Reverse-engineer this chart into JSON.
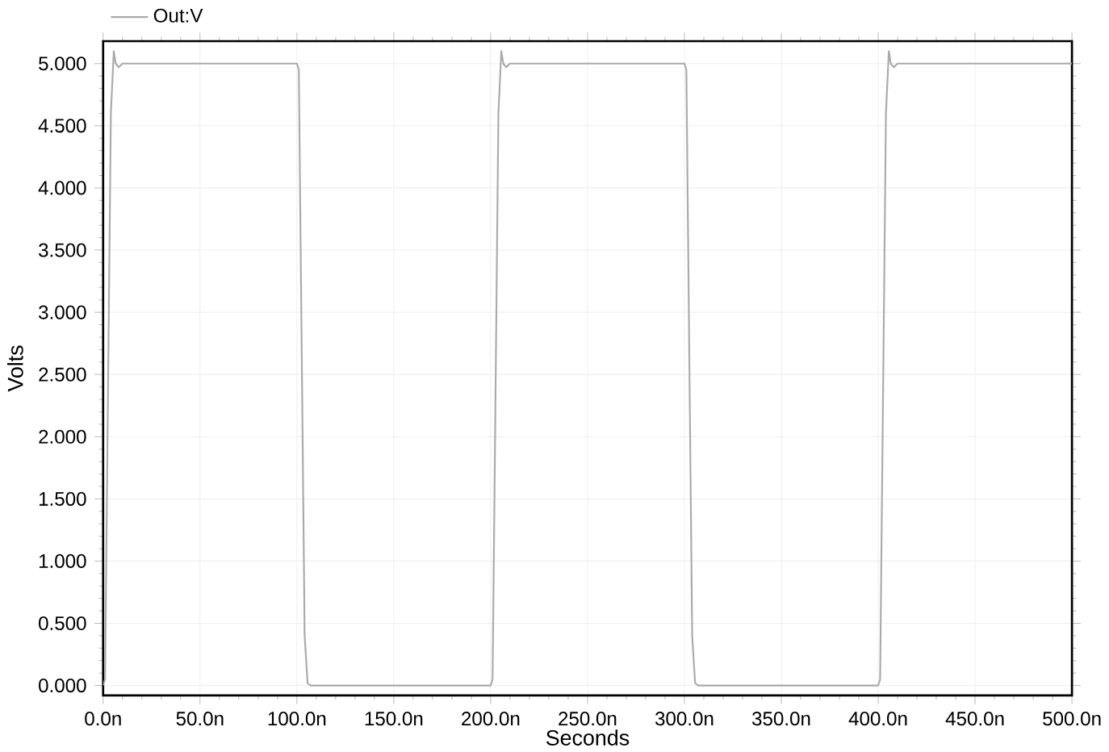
{
  "chart_data": {
    "type": "line",
    "xlabel": "Seconds",
    "ylabel": "Volts",
    "x": [
      0,
      1,
      4,
      5.5,
      6.5,
      8,
      10,
      100,
      101,
      104,
      105.5,
      107,
      200,
      201,
      204,
      205.5,
      206.5,
      208,
      210,
      300,
      301,
      304,
      305.5,
      307,
      400,
      401,
      404,
      405.5,
      406.5,
      408,
      410,
      500
    ],
    "series": [
      {
        "name": "Out:V",
        "color": "#aaaaaa",
        "values": [
          0,
          0.05,
          4.6,
          5.1,
          5.0,
          4.97,
          5.0,
          5.0,
          4.95,
          0.4,
          0.02,
          0,
          0,
          0.05,
          4.6,
          5.1,
          5.0,
          4.97,
          5.0,
          5.0,
          4.95,
          0.4,
          0.02,
          0,
          0,
          0.05,
          4.6,
          5.1,
          5.0,
          4.97,
          5.0,
          5.0
        ]
      }
    ],
    "xlim": [
      0,
      500
    ],
    "ylim": [
      -0.08,
      5.18
    ],
    "xticks": [
      {
        "value": 0,
        "label": "0.0n"
      },
      {
        "value": 50,
        "label": "50.0n"
      },
      {
        "value": 100,
        "label": "100.0n"
      },
      {
        "value": 150,
        "label": "150.0n"
      },
      {
        "value": 200,
        "label": "200.0n"
      },
      {
        "value": 250,
        "label": "250.0n"
      },
      {
        "value": 300,
        "label": "300.0n"
      },
      {
        "value": 350,
        "label": "350.0n"
      },
      {
        "value": 400,
        "label": "400.0n"
      },
      {
        "value": 450,
        "label": "450.0n"
      },
      {
        "value": 500,
        "label": "500.0n"
      }
    ],
    "yticks": [
      {
        "value": 0,
        "label": "0.000"
      },
      {
        "value": 0.5,
        "label": "0.500"
      },
      {
        "value": 1,
        "label": "1.000"
      },
      {
        "value": 1.5,
        "label": "1.500"
      },
      {
        "value": 2,
        "label": "2.000"
      },
      {
        "value": 2.5,
        "label": "2.500"
      },
      {
        "value": 3,
        "label": "3.000"
      },
      {
        "value": 3.5,
        "label": "3.500"
      },
      {
        "value": 4,
        "label": "4.000"
      },
      {
        "value": 4.5,
        "label": "4.500"
      },
      {
        "value": 5,
        "label": "5.000"
      }
    ],
    "grid": true,
    "legend": "top left",
    "marker": "none",
    "line_style": "solid"
  }
}
